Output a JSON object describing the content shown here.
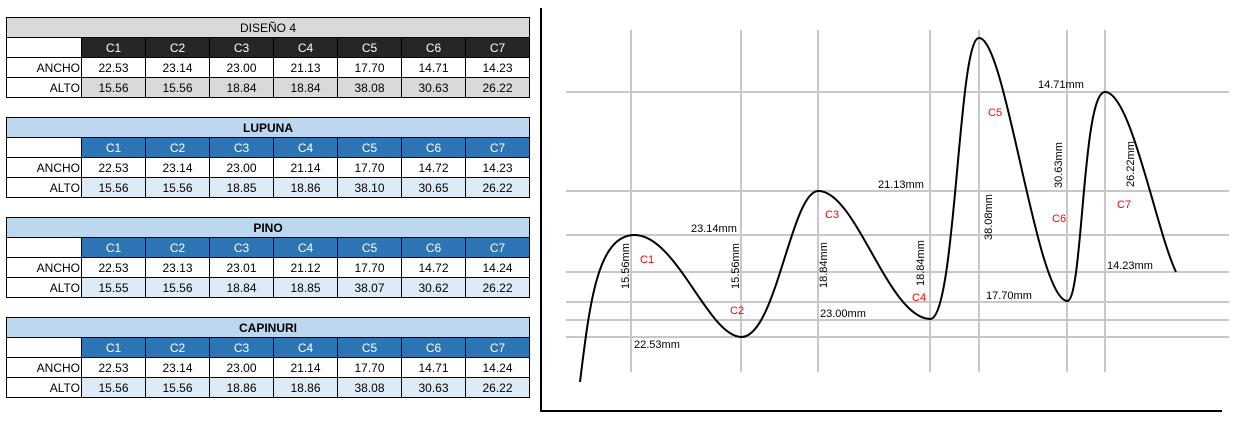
{
  "tables": [
    {
      "title": "DISEÑO 4",
      "style": "gray",
      "columns": [
        "C1",
        "C2",
        "C3",
        "C4",
        "C5",
        "C6",
        "C7"
      ],
      "rows": [
        {
          "label": "ANCHO",
          "values": [
            "22.53",
            "23.14",
            "23.00",
            "21.13",
            "17.70",
            "14.71",
            "14.23"
          ]
        },
        {
          "label": "ALTO",
          "values": [
            "15.56",
            "15.56",
            "18.84",
            "18.84",
            "38.08",
            "30.63",
            "26.22"
          ]
        }
      ]
    },
    {
      "title": "LUPUNA",
      "style": "blue",
      "columns": [
        "C1",
        "C2",
        "C3",
        "C4",
        "C5",
        "C6",
        "C7"
      ],
      "rows": [
        {
          "label": "ANCHO",
          "values": [
            "22.53",
            "23.14",
            "23.00",
            "21.14",
            "17.70",
            "14.72",
            "14.23"
          ]
        },
        {
          "label": "ALTO",
          "values": [
            "15.56",
            "15.56",
            "18.85",
            "18.86",
            "38.10",
            "30.65",
            "26.22"
          ]
        }
      ]
    },
    {
      "title": "PINO",
      "style": "blue",
      "columns": [
        "C1",
        "C2",
        "C3",
        "C4",
        "C5",
        "C6",
        "C7"
      ],
      "rows": [
        {
          "label": "ANCHO",
          "values": [
            "22.53",
            "23.13",
            "23.01",
            "21.12",
            "17.70",
            "14.72",
            "14.24"
          ]
        },
        {
          "label": "ALTO",
          "values": [
            "15.55",
            "15.56",
            "18.84",
            "18.85",
            "38.07",
            "30.62",
            "26.22"
          ]
        }
      ]
    },
    {
      "title": "CAPINURI",
      "style": "blue",
      "columns": [
        "C1",
        "C2",
        "C3",
        "C4",
        "C5",
        "C6",
        "C7"
      ],
      "rows": [
        {
          "label": "ANCHO",
          "values": [
            "22.53",
            "23.14",
            "23.00",
            "21.14",
            "17.70",
            "14.71",
            "14.24"
          ]
        },
        {
          "label": "ALTO",
          "values": [
            "15.56",
            "15.56",
            "18.86",
            "18.86",
            "38.08",
            "30.63",
            "26.22"
          ]
        }
      ]
    }
  ],
  "diagram": {
    "section_labels": [
      "C1",
      "C2",
      "C3",
      "C4",
      "C5",
      "C6",
      "C7"
    ],
    "section_label_color": "#ff0000",
    "width_labels": [
      "22.53mm",
      "23.14mm",
      "23.00mm",
      "21.13mm",
      "17.70mm",
      "14.71mm",
      "14.23mm"
    ],
    "height_labels": [
      "15.56mm",
      "15.56mm",
      "18.84mm",
      "18.84mm",
      "38.08mm",
      "30.63mm",
      "26.22mm"
    ]
  }
}
